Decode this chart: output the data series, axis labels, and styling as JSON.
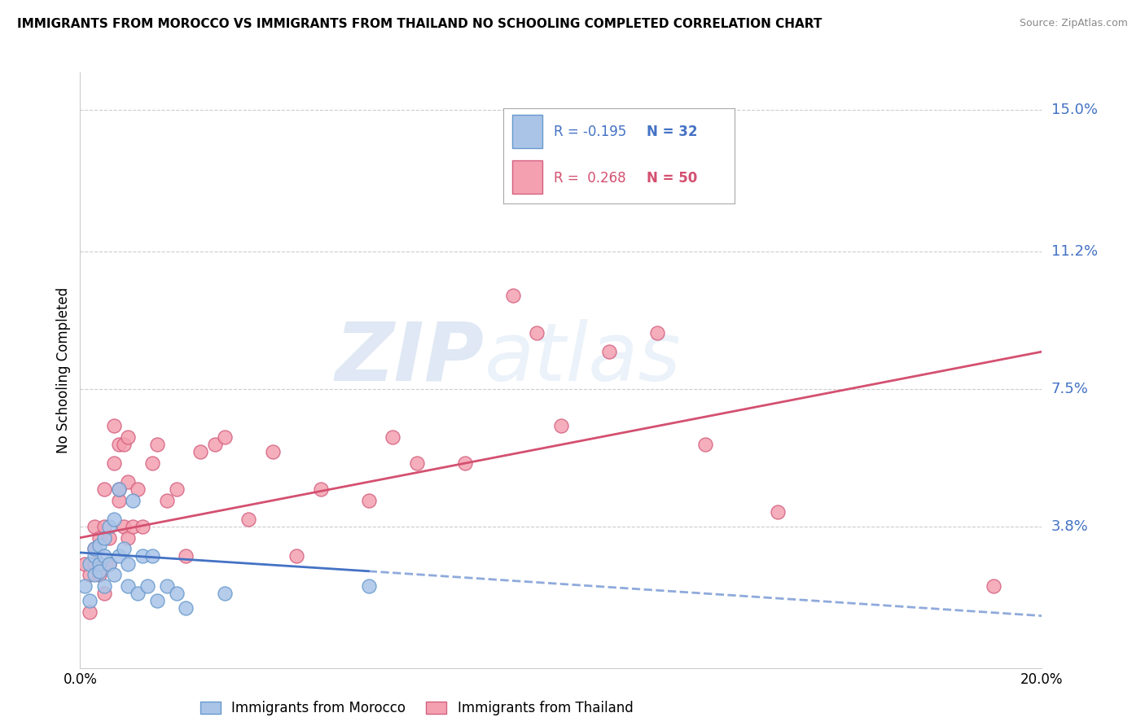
{
  "title": "IMMIGRANTS FROM MOROCCO VS IMMIGRANTS FROM THAILAND NO SCHOOLING COMPLETED CORRELATION CHART",
  "source": "Source: ZipAtlas.com",
  "ylabel": "No Schooling Completed",
  "xlim": [
    0.0,
    0.2
  ],
  "ylim": [
    0.0,
    0.16
  ],
  "ytick_vals": [
    0.038,
    0.075,
    0.112,
    0.15
  ],
  "ytick_labels": [
    "3.8%",
    "7.5%",
    "11.2%",
    "15.0%"
  ],
  "gridline_color": "#cccccc",
  "background_color": "#ffffff",
  "morocco_color": "#aac4e8",
  "morocco_edge": "#6699cc",
  "thailand_color": "#f4a0b0",
  "thailand_edge": "#d46080",
  "morocco_R": -0.195,
  "morocco_N": 32,
  "thailand_R": 0.268,
  "thailand_N": 50,
  "legend_label_morocco": "Immigrants from Morocco",
  "legend_label_thailand": "Immigrants from Thailand",
  "morocco_line_color": "#4472c4",
  "thailand_line_color": "#d45070",
  "watermark_zip": "ZIP",
  "watermark_atlas": "atlas",
  "title_fontsize": 11,
  "axis_label_color": "#4472c4",
  "morocco_x": [
    0.001,
    0.002,
    0.002,
    0.003,
    0.003,
    0.003,
    0.004,
    0.004,
    0.004,
    0.005,
    0.005,
    0.005,
    0.006,
    0.006,
    0.007,
    0.007,
    0.008,
    0.008,
    0.009,
    0.01,
    0.01,
    0.011,
    0.012,
    0.013,
    0.014,
    0.015,
    0.016,
    0.018,
    0.02,
    0.022,
    0.03,
    0.06
  ],
  "morocco_y": [
    0.022,
    0.018,
    0.028,
    0.025,
    0.03,
    0.032,
    0.028,
    0.033,
    0.026,
    0.03,
    0.035,
    0.022,
    0.038,
    0.028,
    0.025,
    0.04,
    0.03,
    0.048,
    0.032,
    0.028,
    0.022,
    0.045,
    0.02,
    0.03,
    0.022,
    0.03,
    0.018,
    0.022,
    0.02,
    0.016,
    0.02,
    0.022
  ],
  "thailand_x": [
    0.001,
    0.002,
    0.002,
    0.003,
    0.003,
    0.003,
    0.004,
    0.004,
    0.005,
    0.005,
    0.005,
    0.006,
    0.006,
    0.007,
    0.007,
    0.008,
    0.008,
    0.008,
    0.009,
    0.009,
    0.01,
    0.01,
    0.01,
    0.011,
    0.012,
    0.013,
    0.015,
    0.016,
    0.018,
    0.02,
    0.022,
    0.025,
    0.028,
    0.03,
    0.035,
    0.04,
    0.045,
    0.05,
    0.06,
    0.065,
    0.07,
    0.08,
    0.09,
    0.095,
    0.1,
    0.11,
    0.12,
    0.13,
    0.145,
    0.19
  ],
  "thailand_y": [
    0.028,
    0.015,
    0.025,
    0.028,
    0.032,
    0.038,
    0.025,
    0.035,
    0.02,
    0.038,
    0.048,
    0.035,
    0.028,
    0.055,
    0.065,
    0.045,
    0.06,
    0.048,
    0.038,
    0.06,
    0.05,
    0.062,
    0.035,
    0.038,
    0.048,
    0.038,
    0.055,
    0.06,
    0.045,
    0.048,
    0.03,
    0.058,
    0.06,
    0.062,
    0.04,
    0.058,
    0.03,
    0.048,
    0.045,
    0.062,
    0.055,
    0.055,
    0.1,
    0.09,
    0.065,
    0.085,
    0.09,
    0.06,
    0.042,
    0.022
  ],
  "morocco_line_x0": 0.0,
  "morocco_line_y0": 0.031,
  "morocco_line_x1": 0.06,
  "morocco_line_y1": 0.026,
  "morocco_line_xdash0": 0.06,
  "morocco_line_ydash0": 0.026,
  "morocco_line_xdash1": 0.2,
  "morocco_line_ydash1": 0.014,
  "thailand_line_x0": 0.0,
  "thailand_line_y0": 0.035,
  "thailand_line_x1": 0.2,
  "thailand_line_y1": 0.085
}
